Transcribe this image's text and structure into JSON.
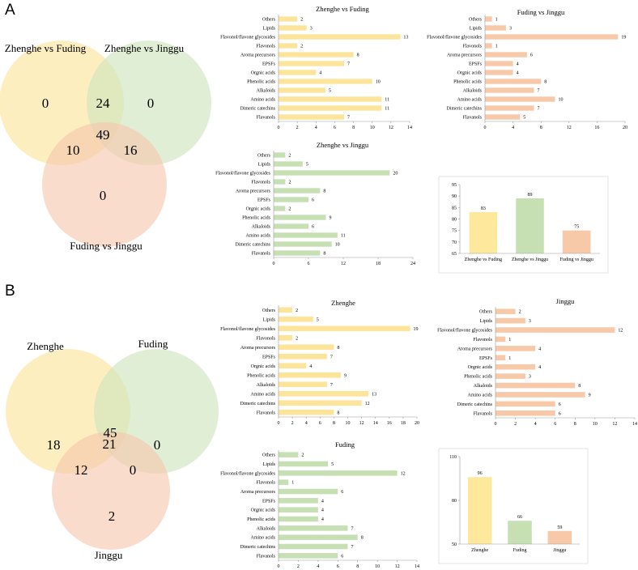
{
  "panels": {
    "a": {
      "label": "A",
      "venn": {
        "sets": [
          "Zhenghe vs Fuding",
          "Zhenghe vs Jinggu",
          "Fuding vs Jinggu"
        ],
        "colors": [
          "#fbe39a",
          "#cfe3bd",
          "#f6c6ad"
        ],
        "regions": {
          "only1": "0",
          "only2": "0",
          "only3": "0",
          "r12": "24",
          "r13": "10",
          "r23": "16",
          "r123": "49"
        }
      }
    },
    "b": {
      "label": "B",
      "venn": {
        "sets": [
          "Zhenghe",
          "Fuding",
          "Jinggu"
        ],
        "colors": [
          "#fbe39a",
          "#cfe3bd",
          "#f6c6ad"
        ],
        "regions": {
          "only1": "18",
          "only2": "0",
          "only3": "2",
          "r12": "21",
          "r13": "12",
          "r23": "0",
          "r123": "45"
        }
      }
    }
  },
  "chart_data": [
    {
      "id": "a1",
      "type": "bar",
      "orientation": "horizontal",
      "title": "Zhenghe vs Fuding",
      "color": "#fce59b",
      "categories": [
        "Others",
        "Lipids",
        "Flavonol/flavone glycosides",
        "Flavonols",
        "Aroma precursors",
        "EPSFs",
        "Orgnic acids",
        "Phenolic acids",
        "Alkaloids",
        "Amino acids",
        "Dimeric catechins",
        "Flavanols"
      ],
      "values": [
        2,
        3,
        13,
        2,
        8,
        7,
        4,
        10,
        5,
        11,
        11,
        7
      ],
      "xlim": [
        0,
        14
      ],
      "xticks": [
        0,
        2,
        4,
        6,
        8,
        10,
        12,
        14
      ]
    },
    {
      "id": "a2",
      "type": "bar",
      "orientation": "horizontal",
      "title": "Fuding vs Jinggu",
      "color": "#f8c9a9",
      "categories": [
        "Others",
        "Lipids",
        "Flavonol/flavone glycosides",
        "Flavonols",
        "Aroma precursors",
        "EPSFs",
        "Orgnic acids",
        "Phenolic acids",
        "Alkaloids",
        "Amino acids",
        "Dimeric catechins",
        "Flavanols"
      ],
      "values": [
        1,
        3,
        19,
        1,
        6,
        4,
        4,
        8,
        7,
        10,
        7,
        5
      ],
      "xlim": [
        0,
        20
      ],
      "xticks": [
        0,
        4,
        8,
        12,
        16,
        20
      ]
    },
    {
      "id": "a3",
      "type": "bar",
      "orientation": "horizontal",
      "title": "Zhenghe vs Jinggu",
      "color": "#c6e0b4",
      "categories": [
        "Others",
        "Lipids",
        "Flavonol/flavone glycosides",
        "Flavonols",
        "Aroma precursors",
        "EPSFs",
        "Orgnic acids",
        "Phenolic acids",
        "Alkaloids",
        "Amino acids",
        "Dimeric catechins",
        "Flavanols"
      ],
      "values": [
        2,
        5,
        20,
        2,
        8,
        6,
        2,
        9,
        6,
        11,
        10,
        8
      ],
      "xlim": [
        0,
        24
      ],
      "xticks": [
        0,
        6,
        12,
        18,
        24
      ]
    },
    {
      "id": "a4",
      "type": "bar",
      "orientation": "vertical",
      "title": "",
      "categories": [
        "Zhenghe vs Fuding",
        "Zhenghe vs Jinggu",
        "Fuding vs Jinggu"
      ],
      "values": [
        83,
        89,
        75
      ],
      "colors": [
        "#fde89c",
        "#c6e0b4",
        "#f8c9a9"
      ],
      "ylim": [
        65,
        95
      ],
      "yticks": [
        65,
        70,
        75,
        80,
        85,
        90,
        95
      ]
    },
    {
      "id": "b1",
      "type": "bar",
      "orientation": "horizontal",
      "title": "Zhenghe",
      "color": "#fce59b",
      "categories": [
        "Others",
        "Lipids",
        "Flavonol/flavone glycosides",
        "Flavonols",
        "Aroma precursors",
        "EPSFs",
        "Orgnic acids",
        "Phenolic acids",
        "Alkaloids",
        "Amino acids",
        "Dimeric catechins",
        "Flavanols"
      ],
      "values": [
        2,
        5,
        19,
        2,
        8,
        7,
        4,
        9,
        7,
        13,
        12,
        8
      ],
      "xlim": [
        0,
        20
      ],
      "xticks": [
        0,
        2,
        4,
        6,
        8,
        10,
        12,
        14,
        16,
        18,
        20
      ]
    },
    {
      "id": "b2",
      "type": "bar",
      "orientation": "horizontal",
      "title": "Jinggu",
      "color": "#f8c9a9",
      "categories": [
        "Others",
        "Lipids",
        "Flavonol/flavone glycosides",
        "Flavonols",
        "Aroma precursors",
        "EPSFs",
        "Orgnic acids",
        "Phenolic acids",
        "Alkaloids",
        "Amino acids",
        "Dimeric catechins",
        "Flavanols"
      ],
      "values": [
        2,
        3,
        12,
        1,
        4,
        1,
        4,
        3,
        8,
        9,
        6,
        6
      ],
      "xlim": [
        0,
        14
      ],
      "xticks": [
        0,
        2,
        4,
        6,
        8,
        10,
        12,
        14
      ]
    },
    {
      "id": "b3",
      "type": "bar",
      "orientation": "horizontal",
      "title": "Fuding",
      "color": "#c6e0b4",
      "categories": [
        "Others",
        "Lipids",
        "Flavonol/flavone glycosides",
        "Flavonols",
        "Aroma precursors",
        "EPSFs",
        "Orgnic acids",
        "Phenolic acids",
        "Alkaloids",
        "Amino acids",
        "Dimeric catechins",
        "Flavanols"
      ],
      "values": [
        2,
        5,
        12,
        1,
        6,
        4,
        4,
        4,
        7,
        8,
        7,
        6
      ],
      "xlim": [
        0,
        14
      ],
      "xticks": [
        0,
        2,
        4,
        6,
        8,
        10,
        12,
        14
      ]
    },
    {
      "id": "b4",
      "type": "bar",
      "orientation": "vertical",
      "title": "",
      "categories": [
        "Zhenghe",
        "Fuding",
        "Jinggu"
      ],
      "values": [
        96,
        66,
        59
      ],
      "colors": [
        "#fde89c",
        "#c6e0b4",
        "#f8c9a9"
      ],
      "ylim": [
        50,
        110
      ],
      "yticks": [
        50,
        80,
        110
      ]
    }
  ]
}
